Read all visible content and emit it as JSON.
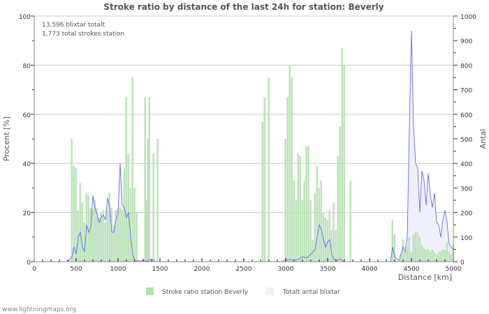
{
  "chart_data": {
    "type": "bar+area",
    "title": "Stroke ratio by distance of the last 24h for station: Beverly",
    "annotations": [
      "13,596 blixtar totalt",
      "1,773 total strokes station"
    ],
    "xlabel": "Distance   [km]",
    "ylabel_left": "Procent   [%]",
    "ylabel_right": "Antal",
    "xlim": [
      0,
      5000
    ],
    "ylim_left": [
      0,
      100
    ],
    "ylim_right": [
      0,
      1000
    ],
    "x_ticks": [
      "0",
      "500",
      "1000",
      "1500",
      "2000",
      "2500",
      "3000",
      "3500",
      "4000",
      "4500",
      "5000"
    ],
    "y_ticks_left": [
      "0",
      "20",
      "40",
      "60",
      "80",
      "100"
    ],
    "y_ticks_right": [
      "0",
      "100",
      "200",
      "300",
      "400",
      "500",
      "600",
      "700",
      "800",
      "900",
      "1000"
    ],
    "grid": true,
    "legend_position": "bottom",
    "legend": [
      "Stroke ratio station Beverly",
      "Totalt antal blixtar"
    ],
    "colors": {
      "ratio": "#b6e0b2",
      "total_fill": "#f0f0fc",
      "total_line": "#6666ff"
    },
    "series": [
      {
        "name": "Stroke ratio station Beverly",
        "kind": "bar",
        "points": [
          [
            450,
            50
          ],
          [
            475,
            39
          ],
          [
            500,
            38
          ],
          [
            525,
            21
          ],
          [
            550,
            32
          ],
          [
            575,
            24
          ],
          [
            600,
            16
          ],
          [
            625,
            28
          ],
          [
            650,
            27
          ],
          [
            675,
            22
          ],
          [
            700,
            21
          ],
          [
            725,
            25
          ],
          [
            750,
            22
          ],
          [
            775,
            18
          ],
          [
            800,
            20
          ],
          [
            825,
            21
          ],
          [
            850,
            16
          ],
          [
            875,
            21
          ],
          [
            900,
            28
          ],
          [
            925,
            22
          ],
          [
            950,
            15
          ],
          [
            975,
            21
          ],
          [
            1000,
            22
          ],
          [
            1025,
            22
          ],
          [
            1050,
            21
          ],
          [
            1075,
            38
          ],
          [
            1100,
            67
          ],
          [
            1125,
            44
          ],
          [
            1150,
            30
          ],
          [
            1175,
            75
          ],
          [
            1200,
            30
          ],
          [
            1225,
            20
          ],
          [
            1325,
            67
          ],
          [
            1340,
            25
          ],
          [
            1360,
            50
          ],
          [
            1375,
            67
          ],
          [
            1425,
            44
          ],
          [
            1475,
            50
          ],
          [
            2725,
            57
          ],
          [
            2750,
            67
          ],
          [
            2800,
            75
          ],
          [
            3000,
            50
          ],
          [
            3025,
            67
          ],
          [
            3050,
            80
          ],
          [
            3075,
            75
          ],
          [
            3100,
            33
          ],
          [
            3125,
            25
          ],
          [
            3150,
            44
          ],
          [
            3175,
            43
          ],
          [
            3200,
            25
          ],
          [
            3225,
            33
          ],
          [
            3250,
            47
          ],
          [
            3275,
            47
          ],
          [
            3300,
            25
          ],
          [
            3325,
            9
          ],
          [
            3350,
            28
          ],
          [
            3375,
            39
          ],
          [
            3400,
            30
          ],
          [
            3425,
            33
          ],
          [
            3450,
            20
          ],
          [
            3475,
            18
          ],
          [
            3500,
            17
          ],
          [
            3525,
            21
          ],
          [
            3550,
            13
          ],
          [
            3575,
            24
          ],
          [
            3600,
            13
          ],
          [
            3625,
            43
          ],
          [
            3650,
            55
          ],
          [
            3675,
            87
          ],
          [
            3700,
            80
          ],
          [
            3775,
            33
          ],
          [
            4275,
            17
          ],
          [
            4300,
            11
          ],
          [
            4375,
            3
          ],
          [
            4400,
            9
          ],
          [
            4425,
            4
          ],
          [
            4450,
            6
          ],
          [
            4475,
            10
          ],
          [
            4500,
            4
          ],
          [
            4525,
            11
          ],
          [
            4550,
            12
          ],
          [
            4575,
            12
          ],
          [
            4600,
            10
          ],
          [
            4625,
            7
          ],
          [
            4650,
            6
          ],
          [
            4675,
            5
          ],
          [
            4700,
            5
          ],
          [
            4725,
            4
          ],
          [
            4750,
            5
          ],
          [
            4775,
            4
          ],
          [
            4800,
            3
          ],
          [
            4825,
            4
          ],
          [
            4850,
            4
          ],
          [
            4875,
            5
          ],
          [
            4900,
            5
          ],
          [
            4925,
            8
          ],
          [
            4950,
            4
          ],
          [
            4975,
            3
          ],
          [
            5000,
            7
          ]
        ]
      },
      {
        "name": "Totalt antal blixtar",
        "kind": "area",
        "points": [
          [
            400,
            0
          ],
          [
            450,
            20
          ],
          [
            475,
            60
          ],
          [
            500,
            30
          ],
          [
            525,
            100
          ],
          [
            550,
            120
          ],
          [
            575,
            60
          ],
          [
            600,
            40
          ],
          [
            625,
            150
          ],
          [
            650,
            120
          ],
          [
            675,
            140
          ],
          [
            700,
            270
          ],
          [
            725,
            220
          ],
          [
            750,
            190
          ],
          [
            775,
            160
          ],
          [
            800,
            180
          ],
          [
            825,
            190
          ],
          [
            850,
            170
          ],
          [
            875,
            260
          ],
          [
            900,
            220
          ],
          [
            925,
            120
          ],
          [
            950,
            120
          ],
          [
            975,
            170
          ],
          [
            1000,
            200
          ],
          [
            1025,
            400
          ],
          [
            1050,
            230
          ],
          [
            1075,
            220
          ],
          [
            1100,
            180
          ],
          [
            1125,
            200
          ],
          [
            1150,
            100
          ],
          [
            1175,
            30
          ],
          [
            1200,
            0
          ],
          [
            1250,
            5
          ],
          [
            1275,
            0
          ],
          [
            1300,
            10
          ],
          [
            1325,
            0
          ],
          [
            1400,
            10
          ],
          [
            1450,
            0
          ],
          [
            2950,
            0
          ],
          [
            3000,
            5
          ],
          [
            3050,
            10
          ],
          [
            3100,
            5
          ],
          [
            3150,
            10
          ],
          [
            3200,
            20
          ],
          [
            3250,
            15
          ],
          [
            3300,
            30
          ],
          [
            3350,
            50
          ],
          [
            3375,
            100
          ],
          [
            3400,
            150
          ],
          [
            3425,
            130
          ],
          [
            3450,
            90
          ],
          [
            3475,
            60
          ],
          [
            3500,
            80
          ],
          [
            3525,
            90
          ],
          [
            3550,
            30
          ],
          [
            3575,
            10
          ],
          [
            3600,
            5
          ],
          [
            3650,
            10
          ],
          [
            3700,
            0
          ],
          [
            4250,
            0
          ],
          [
            4275,
            60
          ],
          [
            4300,
            20
          ],
          [
            4350,
            5
          ],
          [
            4400,
            60
          ],
          [
            4425,
            40
          ],
          [
            4450,
            100
          ],
          [
            4475,
            550
          ],
          [
            4500,
            940
          ],
          [
            4525,
            550
          ],
          [
            4550,
            400
          ],
          [
            4575,
            380
          ],
          [
            4600,
            200
          ],
          [
            4625,
            370
          ],
          [
            4650,
            330
          ],
          [
            4675,
            230
          ],
          [
            4700,
            360
          ],
          [
            4725,
            270
          ],
          [
            4750,
            220
          ],
          [
            4775,
            280
          ],
          [
            4800,
            160
          ],
          [
            4825,
            150
          ],
          [
            4850,
            100
          ],
          [
            4875,
            170
          ],
          [
            4900,
            210
          ],
          [
            4925,
            160
          ],
          [
            4950,
            70
          ],
          [
            4975,
            60
          ],
          [
            5000,
            50
          ]
        ]
      }
    ]
  },
  "footer": "www.lightningmaps.org"
}
